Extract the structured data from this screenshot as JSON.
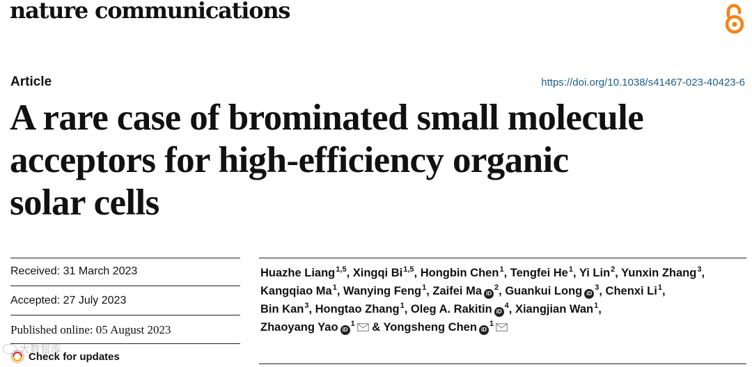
{
  "header": {
    "journal_name": "nature communications",
    "oa_icon": "open-access-icon"
  },
  "article": {
    "type": "Article",
    "doi": "https://doi.org/10.1038/s41467-023-40423-6",
    "title_lines": [
      "A rare case of brominated small molecule",
      "acceptors for high-efficiency organic",
      "solar cells"
    ]
  },
  "history": {
    "received": "Received: 31 March 2023",
    "accepted": "Accepted: 27 July 2023",
    "published": "Published online: 05 August 2023",
    "check_updates": "Check for updates"
  },
  "watermark": {
    "text": "大数智库"
  },
  "authors": [
    {
      "name": "Huazhe Liang",
      "aff": "1,5",
      "sep": ", "
    },
    {
      "name": "Xingqi Bi",
      "aff": "1,5",
      "sep": ", "
    },
    {
      "name": "Hongbin Chen",
      "aff": "1",
      "sep": ", "
    },
    {
      "name": "Tengfei He",
      "aff": "1",
      "sep": ", "
    },
    {
      "name": "Yi Lin",
      "aff": "2",
      "sep": ", "
    },
    {
      "name": "Yunxin Zhang",
      "aff": "3",
      "sep": ","
    },
    {
      "name": "Kangqiao Ma",
      "aff": "1",
      "sep": ", "
    },
    {
      "name": "Wanying Feng",
      "aff": "1",
      "sep": ", "
    },
    {
      "name": "Zaifei Ma",
      "aff": "2",
      "sep": ", "
    },
    {
      "name": "Guankui Long",
      "aff": "3",
      "sep": ", "
    },
    {
      "name": "Chenxi Li",
      "aff": "1",
      "sep": ","
    },
    {
      "name": "Bin Kan",
      "aff": "3",
      "sep": ", "
    },
    {
      "name": "Hongtao Zhang",
      "aff": "1",
      "sep": ", "
    },
    {
      "name": "Oleg A. Rakitin",
      "aff": "4",
      "sep": ", "
    },
    {
      "name": "Xiangjian Wan",
      "aff": "1",
      "sep": ","
    },
    {
      "name": "Zhaoyang Yao",
      "aff": "1",
      "sep": " & "
    },
    {
      "name": "Yongsheng Chen",
      "aff": "1",
      "sep": ""
    }
  ],
  "colors": {
    "doi_link": "#1a5f8c",
    "oa_orange": "#f68212",
    "text": "#111111"
  }
}
